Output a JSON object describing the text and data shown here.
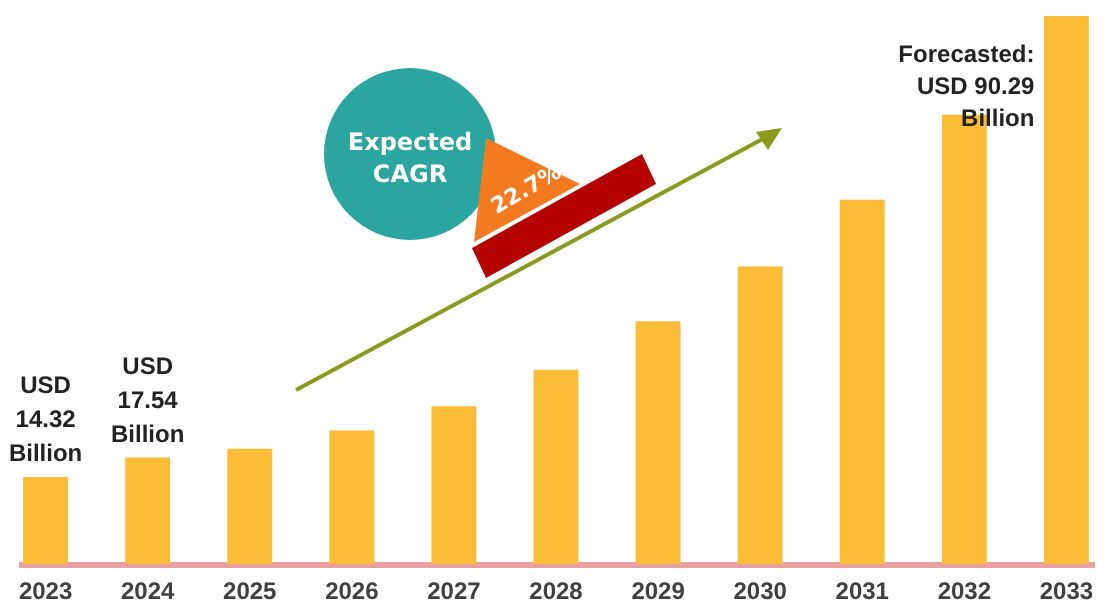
{
  "chart_data": {
    "type": "bar",
    "categories": [
      "2023",
      "2024",
      "2025",
      "2026",
      "2027",
      "2028",
      "2029",
      "2030",
      "2031",
      "2032",
      "2033"
    ],
    "values": [
      14.32,
      17.54,
      19,
      22,
      26,
      32,
      40,
      49,
      60,
      74,
      90.29
    ],
    "color": "#fbbc37",
    "value_labels": [
      "USD 14.32 Billion",
      "USD 17.54 Billion",
      null,
      null,
      null,
      null,
      null,
      null,
      null,
      null,
      null
    ],
    "annotations": [
      "Expected CAGR",
      "22.7%",
      {
        "text": "Forecasted: USD 90.29 Billion",
        "x": "2033",
        "y": 90.29
      }
    ],
    "grid": false
  }
}
